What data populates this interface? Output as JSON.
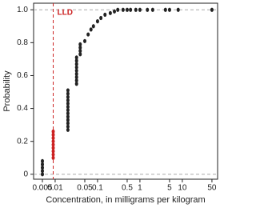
{
  "chart_data": {
    "type": "scatter",
    "xlabel": "Concentration, in milligrams per kilogram",
    "ylabel": "Probability",
    "xscale": "log",
    "xlim": [
      0.0031,
      68
    ],
    "ylim": [
      -0.03,
      1.04
    ],
    "xticks": [
      0.005,
      0.01,
      0.05,
      0.1,
      0.5,
      1,
      5,
      10,
      50
    ],
    "yticks": [
      0,
      0.2,
      0.4,
      0.6,
      0.8,
      {
        "value": 1,
        "label": "1.0"
      }
    ],
    "hlines": [
      0,
      1
    ],
    "hline_color": "#aaaaaa",
    "annotation": {
      "text": "LLD",
      "x": 0.009,
      "color": "#cc2222"
    },
    "series": [
      {
        "color": "#222222",
        "x": [
          0.005,
          0.005,
          0.005,
          0.005,
          0.005,
          0.02,
          0.02,
          0.02,
          0.02,
          0.02,
          0.02,
          0.02,
          0.02,
          0.02,
          0.02,
          0.02,
          0.02,
          0.02,
          0.032,
          0.032,
          0.032,
          0.032,
          0.032,
          0.032,
          0.032,
          0.032,
          0.032,
          0.039,
          0.039,
          0.039,
          0.039,
          0.05,
          0.06,
          0.07,
          0.08,
          0.1,
          0.12,
          0.15,
          0.2,
          0.25,
          0.3,
          0.4,
          0.5,
          0.6,
          0.8,
          1,
          1.5,
          2,
          4,
          5,
          8,
          50
        ],
        "values": [
          0.0,
          0.02,
          0.04,
          0.06,
          0.08,
          0.27,
          0.29,
          0.31,
          0.33,
          0.35,
          0.37,
          0.39,
          0.41,
          0.43,
          0.45,
          0.47,
          0.49,
          0.51,
          0.55,
          0.57,
          0.59,
          0.61,
          0.63,
          0.65,
          0.67,
          0.69,
          0.71,
          0.73,
          0.75,
          0.77,
          0.79,
          0.81,
          0.85,
          0.88,
          0.9,
          0.93,
          0.95,
          0.97,
          0.98,
          0.99,
          1.0,
          1.0,
          1.0,
          1.0,
          1.0,
          1.0,
          1.0,
          1.0,
          1.0,
          1.0,
          1.0,
          1.0
        ]
      },
      {
        "color": "#cc2222",
        "x": [
          0.009,
          0.009,
          0.009,
          0.009,
          0.009,
          0.009,
          0.009,
          0.009,
          0.009
        ],
        "values": [
          0.1,
          0.12,
          0.14,
          0.16,
          0.18,
          0.2,
          0.22,
          0.24,
          0.26
        ]
      }
    ]
  }
}
